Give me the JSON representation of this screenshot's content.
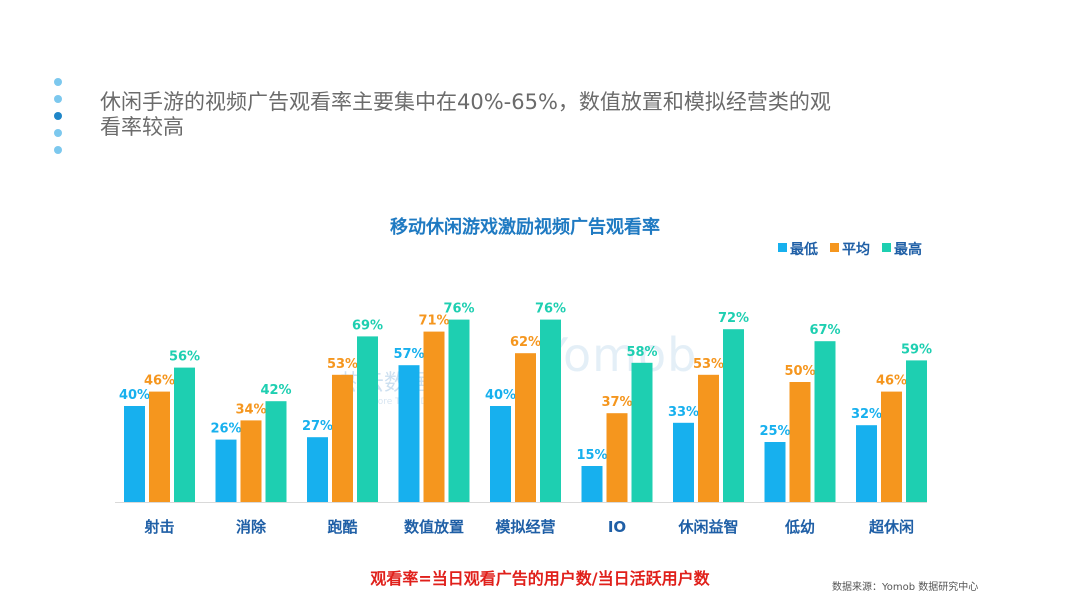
{
  "headline": "休闲手游的视频广告观看率主要集中在40%-65%，数值放置和模拟经营类的观看率较高",
  "watermark": {
    "brand_cn": "热云数据",
    "brand_en": "More Than Data",
    "brand2": "Yomob"
  },
  "formula": "观看率=当日观看广告的用户数/当日活跃用户数",
  "source": "数据来源：Yomob 数据研究中心",
  "colors": {
    "series": [
      "#17b0ee",
      "#f5961e",
      "#1ecfb1"
    ],
    "title": "#1f7ac2",
    "category": "#1f5fa6",
    "formula": "#e0201b"
  },
  "chart_data": {
    "type": "bar",
    "title": "移动休闲游戏激励视频广告观看率",
    "categories": [
      "射击",
      "消除",
      "跑酷",
      "数值放置",
      "模拟经营",
      "IO",
      "休闲益智",
      "低幼",
      "超休闲"
    ],
    "series": [
      {
        "name": "最低",
        "values": [
          40,
          26,
          27,
          57,
          40,
          15,
          33,
          25,
          32
        ],
        "labels": [
          "40%",
          "26%",
          "27%",
          "57%",
          "40%",
          "15%",
          "33%",
          "25%",
          "32%"
        ]
      },
      {
        "name": "平均",
        "values": [
          46,
          34,
          53,
          71,
          62,
          37,
          53,
          50,
          46
        ],
        "labels": [
          "46%",
          "34%",
          "53%",
          "71%",
          "62%",
          "37%",
          "53%",
          "50%",
          "46%"
        ]
      },
      {
        "name": "最高",
        "values": [
          56,
          42,
          69,
          76,
          76,
          58,
          72,
          67,
          59
        ],
        "labels": [
          "56%",
          "42%",
          "69%",
          "76%",
          "76%",
          "58%",
          "72%",
          "67%",
          "59%"
        ]
      }
    ],
    "legend_position": "top-right",
    "ylim": [
      0,
      100
    ],
    "grid": false
  }
}
